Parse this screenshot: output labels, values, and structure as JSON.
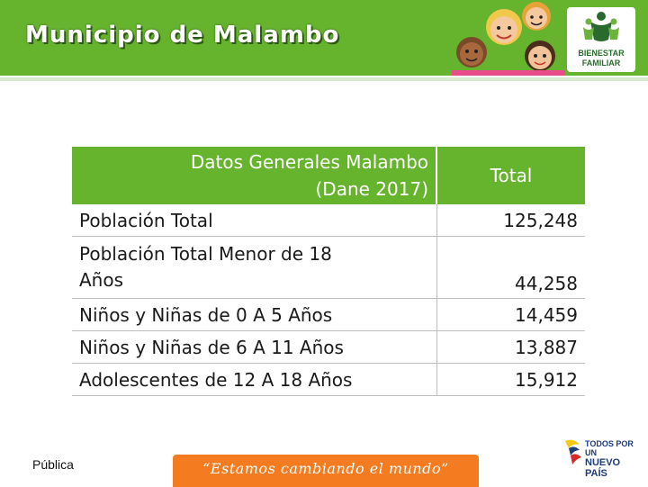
{
  "header": {
    "title": "Municipio de Malambo",
    "logo_line1": "BIENESTAR",
    "logo_line2": "FAMILIAR"
  },
  "table": {
    "header_label_line1": "Datos Generales Malambo",
    "header_label_line2": "(Dane 2017)",
    "header_total": "Total",
    "rows": [
      {
        "label": "Población Total",
        "value": "125,248"
      },
      {
        "label_line1": "Población Total Menor de 18",
        "label_line2": "Años",
        "value": "44,258"
      },
      {
        "label": "Niños y Niñas de 0 A 5 Años",
        "value": "14,459"
      },
      {
        "label": "Niños y Niñas de 6 A 11 Años",
        "value": "13,887"
      },
      {
        "label": "Adolescentes de 12 A 18 Años",
        "value": "15,912"
      }
    ]
  },
  "footer": {
    "classification": "Pública",
    "slogan": "“Estamos cambiando el mundo”",
    "gov_line1": "TODOS POR UN",
    "gov_line2": "NUEVO PAÍS"
  },
  "colors": {
    "brand_green": "#66b32e",
    "slogan_orange": "#f47b20"
  }
}
